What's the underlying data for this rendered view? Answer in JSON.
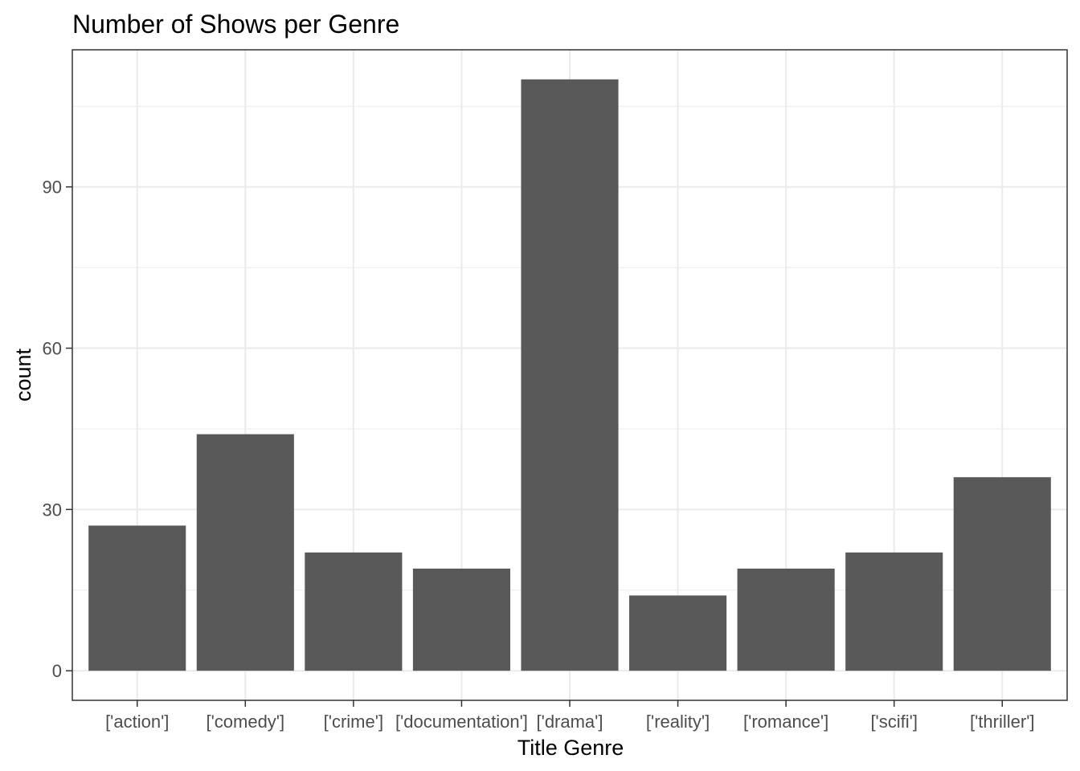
{
  "chart_data": {
    "type": "bar",
    "title": "Number of Shows per Genre",
    "xlabel": "Title Genre",
    "ylabel": "count",
    "categories": [
      "['action']",
      "['comedy']",
      "['crime']",
      "['documentation']",
      "['drama']",
      "['reality']",
      "['romance']",
      "['scifi']",
      "['thriller']"
    ],
    "values": [
      27,
      44,
      22,
      19,
      110,
      14,
      19,
      22,
      36
    ],
    "ylim": [
      -5.5,
      115.5
    ],
    "yticks": [
      0,
      30,
      60,
      90
    ],
    "yticks_labels": [
      "0",
      "30",
      "60",
      "90"
    ],
    "grid": true,
    "bar_color": "#595959",
    "grid_color": "#ebebeb",
    "panel_border_color": "#333333"
  }
}
